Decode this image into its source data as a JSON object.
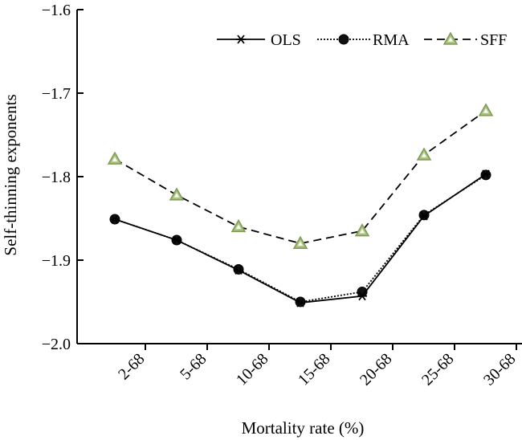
{
  "chart_data": {
    "type": "line",
    "xlabel": "Mortality rate (%)",
    "ylabel": "Self-thinning exponents",
    "categories": [
      "2-68",
      "5-68",
      "10-68",
      "15-68",
      "20-68",
      "25-68",
      "30-68"
    ],
    "ylim": [
      -2.0,
      -1.6
    ],
    "yticks": [
      -2.0,
      -1.9,
      -1.8,
      -1.7,
      -1.6
    ],
    "ytick_labels": [
      "−2.0",
      "−1.9",
      "−1.8",
      "−1.7",
      "−1.6"
    ],
    "grid": false,
    "legend_position": "top-right",
    "series": [
      {
        "name": "OLS",
        "values": [
          -1.851,
          -1.876,
          -1.912,
          -1.951,
          -1.943,
          -1.847,
          -1.797
        ],
        "line_style": "solid",
        "marker": "asterisk",
        "color": "#000000"
      },
      {
        "name": "RMA",
        "values": [
          -1.851,
          -1.876,
          -1.911,
          -1.95,
          -1.938,
          -1.846,
          -1.798
        ],
        "line_style": "dotted",
        "marker": "circle",
        "color": "#000000"
      },
      {
        "name": "SFF",
        "values": [
          -1.779,
          -1.822,
          -1.86,
          -1.88,
          -1.865,
          -1.774,
          -1.721
        ],
        "line_style": "dashed",
        "marker": "triangle",
        "color": "#000000",
        "marker_fill": "#a6c17a"
      }
    ]
  }
}
